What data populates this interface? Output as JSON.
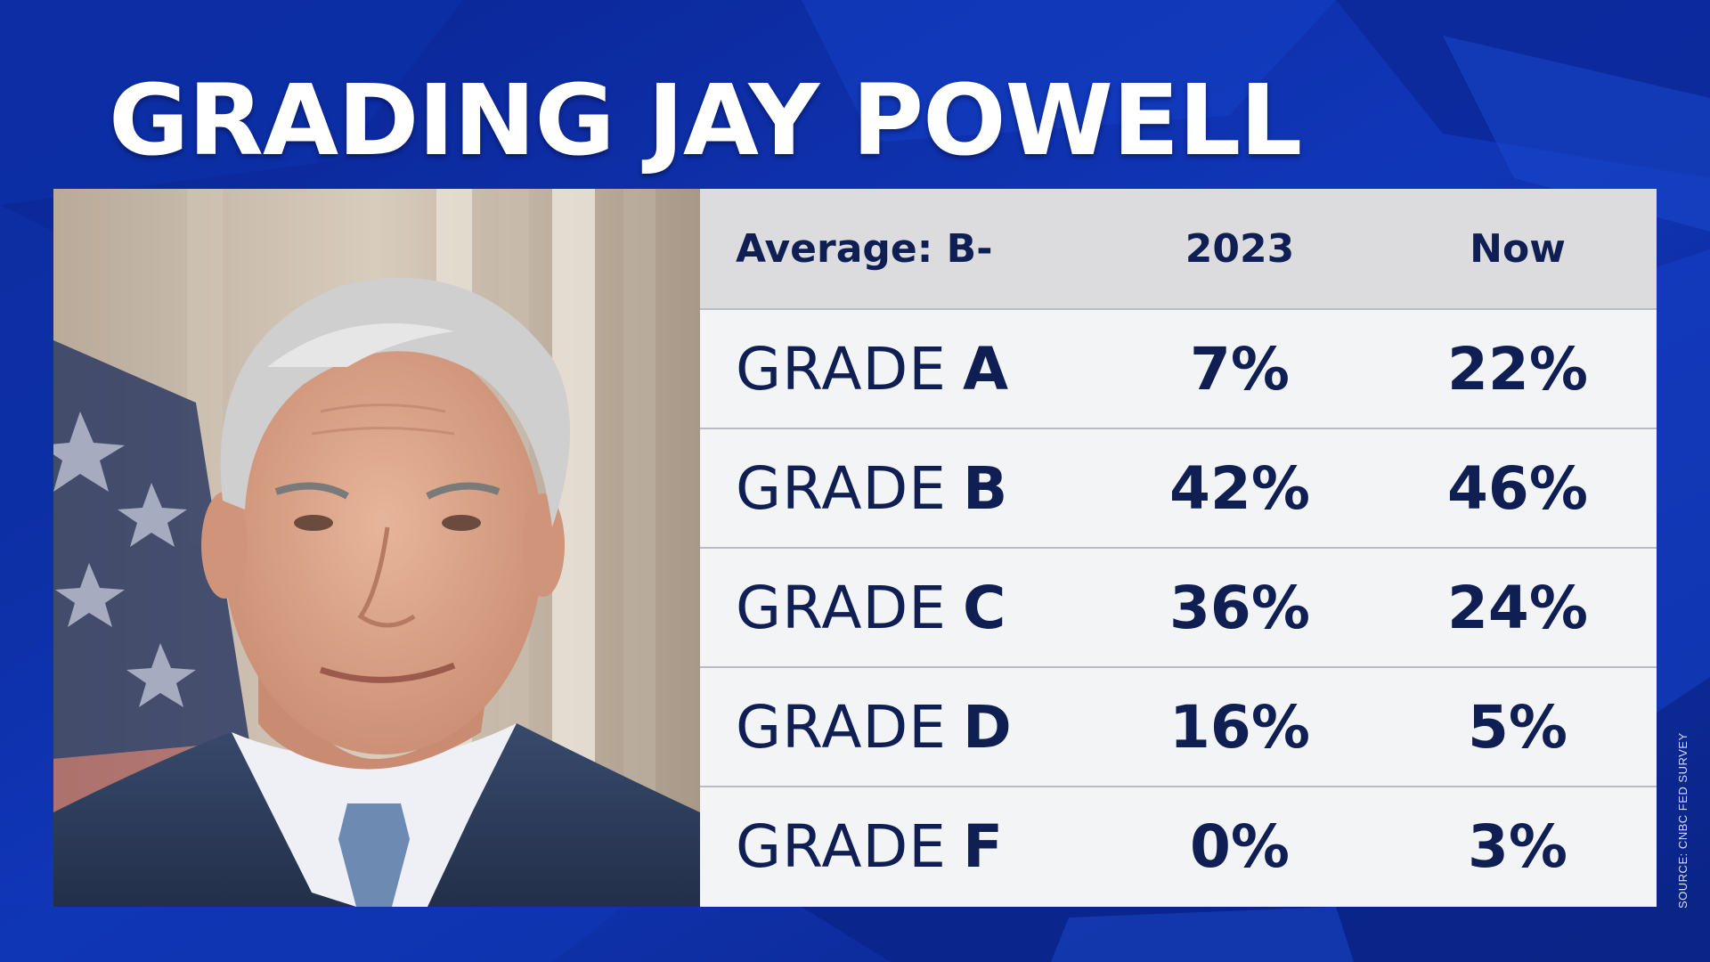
{
  "title": "GRADING JAY POWELL",
  "colors": {
    "background": "#0c2a9c",
    "table_background": "#f3f4f6",
    "header_background": "#dcdcdf",
    "text": "#0f1f54",
    "title_text": "#ffffff"
  },
  "photo": {
    "description_icon": "portrait-photo"
  },
  "table": {
    "header": {
      "label": "Average: B-",
      "col1": "2023",
      "col2": "Now"
    },
    "rows": [
      {
        "word": "GRADE",
        "letter": "A",
        "v2023": "7%",
        "vNow": "22%"
      },
      {
        "word": "GRADE",
        "letter": "B",
        "v2023": "42%",
        "vNow": "46%"
      },
      {
        "word": "GRADE",
        "letter": "C",
        "v2023": "36%",
        "vNow": "24%"
      },
      {
        "word": "GRADE",
        "letter": "D",
        "v2023": "16%",
        "vNow": "5%"
      },
      {
        "word": "GRADE",
        "letter": "F",
        "v2023": "0%",
        "vNow": "3%"
      }
    ]
  },
  "source": "SOURCE: CNBC FED SURVEY",
  "chart_data": {
    "type": "table",
    "title": "GRADING JAY POWELL",
    "columns": [
      "Average: B-",
      "2023",
      "Now"
    ],
    "categories": [
      "GRADE A",
      "GRADE B",
      "GRADE C",
      "GRADE D",
      "GRADE F"
    ],
    "series": [
      {
        "name": "2023",
        "values": [
          7,
          42,
          36,
          16,
          0
        ]
      },
      {
        "name": "Now",
        "values": [
          22,
          46,
          24,
          5,
          3
        ]
      }
    ],
    "units": "%"
  }
}
